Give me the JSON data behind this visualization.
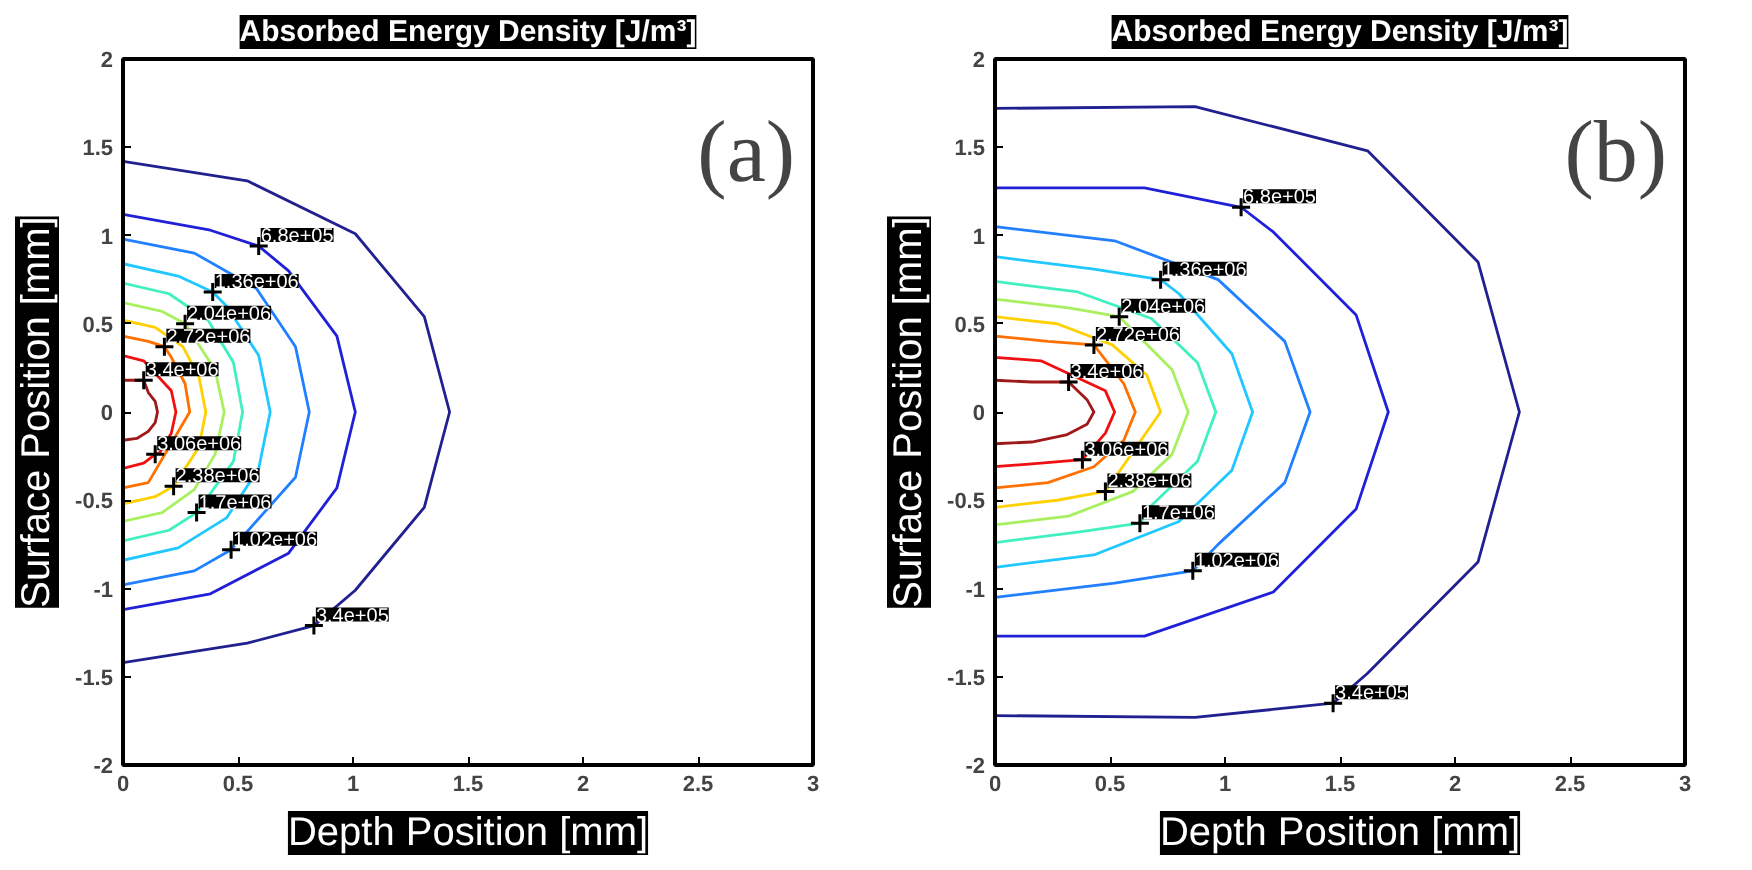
{
  "chart_data": [
    {
      "type": "line",
      "title": "Absorbed Energy Density [J/m³]",
      "xlabel": "Depth Position [mm]",
      "ylabel": "Surface Position [mm]",
      "xlim": [
        0,
        3
      ],
      "ylim": [
        -2,
        2
      ],
      "xticks": [
        0,
        0.5,
        1,
        1.5,
        2,
        2.5,
        3
      ],
      "yticks": [
        -2,
        -1.5,
        -1,
        -0.5,
        0,
        0.5,
        1,
        1.5,
        2
      ],
      "series": [
        {
          "color": "#202090",
          "x": [
            0,
            0.54,
            1.01,
            1.31,
            1.42,
            1.31,
            1.01,
            0.83,
            0.54,
            0
          ],
          "values": [
            1.42,
            1.31,
            1.01,
            0.54,
            0,
            -0.54,
            -1.01,
            -1.21,
            -1.31,
            -1.42
          ]
        },
        {
          "color": "#2020d8",
          "x": [
            0,
            0.38,
            0.59,
            0.72,
            0.93,
            1.01,
            0.93,
            0.72,
            0.38,
            0
          ],
          "values": [
            1.12,
            1.03,
            0.94,
            0.8,
            0.43,
            0,
            -0.43,
            -0.8,
            -1.03,
            -1.12
          ]
        },
        {
          "color": "#2080ff",
          "x": [
            0,
            0.31,
            0.58,
            0.75,
            0.81,
            0.75,
            0.47,
            0.31,
            0
          ],
          "values": [
            0.98,
            0.9,
            0.7,
            0.37,
            0,
            -0.37,
            -0.78,
            -0.9,
            -0.98
          ]
        },
        {
          "color": "#20c8ff",
          "x": [
            0,
            0.24,
            0.39,
            0.45,
            0.59,
            0.64,
            0.59,
            0.45,
            0.24,
            0
          ],
          "values": [
            0.84,
            0.77,
            0.68,
            0.6,
            0.32,
            0,
            -0.32,
            -0.6,
            -0.77,
            -0.84
          ]
        },
        {
          "color": "#40f0c0",
          "x": [
            0,
            0.2,
            0.37,
            0.48,
            0.52,
            0.48,
            0.32,
            0.2,
            0
          ],
          "values": [
            0.73,
            0.67,
            0.52,
            0.28,
            0,
            -0.28,
            -0.57,
            -0.67,
            -0.73
          ]
        },
        {
          "color": "#a8f060",
          "x": [
            0,
            0.17,
            0.27,
            0.4,
            0.44,
            0.4,
            0.31,
            0.17,
            0
          ],
          "values": [
            0.62,
            0.57,
            0.5,
            0.24,
            0,
            -0.24,
            -0.44,
            -0.57,
            -0.62
          ]
        },
        {
          "color": "#ffd000",
          "x": [
            0,
            0.14,
            0.26,
            0.33,
            0.36,
            0.33,
            0.22,
            0.14,
            0
          ],
          "values": [
            0.52,
            0.48,
            0.37,
            0.2,
            0,
            -0.2,
            -0.42,
            -0.48,
            -0.52
          ]
        },
        {
          "color": "#ff7000",
          "x": [
            0,
            0.11,
            0.18,
            0.21,
            0.27,
            0.29,
            0.11,
            0
          ],
          "values": [
            0.43,
            0.4,
            0.37,
            0.31,
            0.16,
            0,
            -0.4,
            -0.43
          ]
        },
        {
          "color": "#f01010",
          "x": [
            0,
            0.09,
            0.21,
            0.23,
            0.21,
            0.16,
            0.14,
            0.09,
            0
          ],
          "values": [
            0.32,
            0.29,
            0.12,
            0,
            -0.12,
            -0.23,
            -0.24,
            -0.29,
            -0.32
          ]
        },
        {
          "color": "#a01818",
          "x": [
            0,
            0.09,
            0.11,
            0.14,
            0.15,
            0.14,
            0.11,
            0.06,
            0
          ],
          "values": [
            0.18,
            0.18,
            0.11,
            0.06,
            0,
            -0.06,
            -0.11,
            -0.15,
            -0.16
          ]
        }
      ],
      "annotations": [
        "(a)",
        {
          "text": "6.8e+05",
          "x": 0.59,
          "y": 0.94
        },
        {
          "text": "1.36e+06",
          "x": 0.39,
          "y": 0.68
        },
        {
          "text": "2.04e+06",
          "x": 0.27,
          "y": 0.5
        },
        {
          "text": "2.72e+06",
          "x": 0.18,
          "y": 0.37
        },
        {
          "text": "3.4e+06",
          "x": 0.09,
          "y": 0.18
        },
        {
          "text": "3.06e+06",
          "x": 0.14,
          "y": -0.24
        },
        {
          "text": "2.38e+06",
          "x": 0.22,
          "y": -0.42
        },
        {
          "text": "1.7e+06",
          "x": 0.32,
          "y": -0.57
        },
        {
          "text": "1.02e+06",
          "x": 0.47,
          "y": -0.78
        },
        {
          "text": "3.4e+05",
          "x": 0.83,
          "y": -1.21
        }
      ]
    },
    {
      "type": "line",
      "title": "Absorbed Energy Density [J/m³]",
      "xlabel": "Depth Position [mm]",
      "ylabel": "Surface Position [mm]",
      "xlim": [
        0,
        3
      ],
      "ylim": [
        -2,
        2
      ],
      "xticks": [
        0,
        0.5,
        1,
        1.5,
        2,
        2.5,
        3
      ],
      "yticks": [
        -2,
        -1.5,
        -1,
        -0.5,
        0,
        0.5,
        1,
        1.5,
        2
      ],
      "series": [
        {
          "color": "#202090",
          "x": [
            0,
            0.87,
            1.62,
            2.1,
            2.28,
            2.1,
            1.62,
            1.47,
            0.87,
            0
          ],
          "values": [
            1.72,
            1.73,
            1.48,
            0.85,
            0,
            -0.85,
            -1.48,
            -1.65,
            -1.73,
            -1.72
          ]
        },
        {
          "color": "#2020d8",
          "x": [
            0,
            0.65,
            1.07,
            1.21,
            1.57,
            1.71,
            1.57,
            1.21,
            0.65,
            0
          ],
          "values": [
            1.27,
            1.27,
            1.16,
            1.02,
            0.55,
            0,
            -0.55,
            -1.02,
            -1.27,
            -1.27
          ]
        },
        {
          "color": "#2080ff",
          "x": [
            0,
            0.52,
            0.97,
            1.26,
            1.37,
            1.26,
            0.97,
            0.86,
            0.52,
            0
          ],
          "values": [
            1.05,
            0.97,
            0.75,
            0.4,
            0,
            -0.4,
            -0.75,
            -0.9,
            -0.97,
            -1.05
          ]
        },
        {
          "color": "#20c8ff",
          "x": [
            0,
            0.43,
            0.72,
            0.8,
            1.03,
            1.12,
            1.03,
            0.8,
            0.43,
            0
          ],
          "values": [
            0.88,
            0.81,
            0.75,
            0.67,
            0.33,
            0,
            -0.33,
            -0.62,
            -0.81,
            -0.88
          ]
        },
        {
          "color": "#40f0c0",
          "x": [
            0,
            0.36,
            0.68,
            0.88,
            0.96,
            0.88,
            0.68,
            0.63,
            0.36,
            0
          ],
          "values": [
            0.74,
            0.68,
            0.53,
            0.28,
            0,
            -0.28,
            -0.53,
            -0.63,
            -0.68,
            -0.74
          ]
        },
        {
          "color": "#a8f060",
          "x": [
            0,
            0.32,
            0.54,
            0.77,
            0.84,
            0.77,
            0.6,
            0.32,
            0
          ],
          "values": [
            0.64,
            0.59,
            0.54,
            0.24,
            0,
            -0.24,
            -0.45,
            -0.59,
            -0.64
          ]
        },
        {
          "color": "#ffd000",
          "x": [
            0,
            0.27,
            0.51,
            0.66,
            0.72,
            0.48,
            0.27,
            0
          ],
          "values": [
            0.54,
            0.5,
            0.38,
            0.21,
            0,
            -0.45,
            -0.5,
            -0.54
          ]
        },
        {
          "color": "#ff7000",
          "x": [
            0,
            0.23,
            0.43,
            0.56,
            0.61,
            0.56,
            0.43,
            0.23,
            0
          ],
          "values": [
            0.43,
            0.4,
            0.38,
            0.16,
            0,
            -0.16,
            -0.31,
            -0.4,
            -0.43
          ]
        },
        {
          "color": "#f01010",
          "x": [
            0,
            0.2,
            0.48,
            0.52,
            0.48,
            0.38,
            0.2,
            0
          ],
          "values": [
            0.31,
            0.29,
            0.12,
            0,
            -0.12,
            -0.27,
            -0.29,
            -0.31
          ]
        },
        {
          "color": "#a01818",
          "x": [
            0,
            0.16,
            0.32,
            0.4,
            0.43,
            0.4,
            0.31,
            0.16,
            0
          ],
          "values": [
            0.18,
            0.17,
            0.17,
            0.07,
            0,
            -0.07,
            -0.13,
            -0.17,
            -0.18
          ]
        }
      ],
      "annotations": [
        "(b)",
        {
          "text": "6.8e+05",
          "x": 1.07,
          "y": 1.16
        },
        {
          "text": "1.36e+06",
          "x": 0.72,
          "y": 0.75
        },
        {
          "text": "2.04e+06",
          "x": 0.54,
          "y": 0.54
        },
        {
          "text": "2.72e+06",
          "x": 0.43,
          "y": 0.38
        },
        {
          "text": "3.4e+06",
          "x": 0.32,
          "y": 0.17
        },
        {
          "text": "3.06e+06",
          "x": 0.38,
          "y": -0.27
        },
        {
          "text": "2.38e+06",
          "x": 0.48,
          "y": -0.45
        },
        {
          "text": "1.7e+06",
          "x": 0.63,
          "y": -0.63
        },
        {
          "text": "1.02e+06",
          "x": 0.86,
          "y": -0.9
        },
        {
          "text": "3.4e+05",
          "x": 1.47,
          "y": -1.65
        }
      ]
    }
  ]
}
